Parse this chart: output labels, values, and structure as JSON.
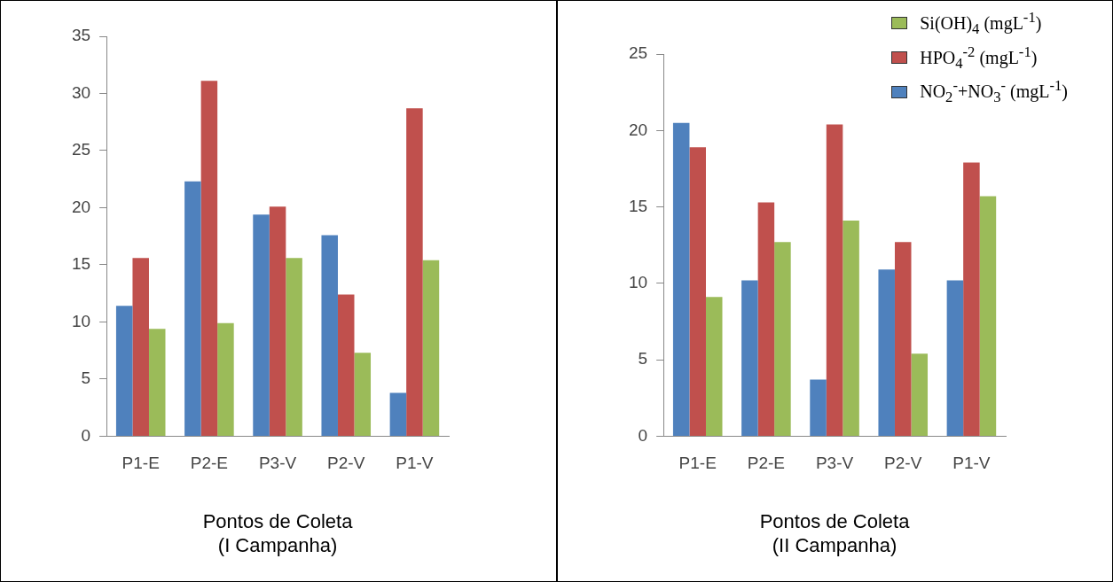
{
  "chart_data": [
    {
      "type": "bar",
      "xlabel": "Pontos de Coleta\n(I Campanha)",
      "categories": [
        "P1-E",
        "P2-E",
        "P3-V",
        "P2-V",
        "P1-V"
      ],
      "series": [
        {
          "color": "#4f81bd",
          "values": [
            11.4,
            22.3,
            19.4,
            17.6,
            3.8
          ]
        },
        {
          "color": "#c0504d",
          "values": [
            15.6,
            31.1,
            20.1,
            12.4,
            28.7
          ]
        },
        {
          "color": "#9bbb59",
          "values": [
            9.4,
            9.9,
            15.6,
            7.3,
            15.4
          ]
        }
      ],
      "ylim": [
        0,
        35
      ],
      "yticks": [
        0,
        5,
        10,
        15,
        20,
        25,
        30,
        35
      ],
      "grid": false,
      "legend": false
    },
    {
      "type": "bar",
      "xlabel": "Pontos de Coleta\n(II Campanha)",
      "categories": [
        "P1-E",
        "P2-E",
        "P3-V",
        "P2-V",
        "P1-V"
      ],
      "series": [
        {
          "name": "NO$_{2}$$^{-}$+NO$_{3}$$^{-}$ (mgL$^{-1}$)",
          "color": "#4f81bd",
          "values": [
            20.5,
            10.2,
            3.7,
            10.9,
            10.2
          ]
        },
        {
          "name": "HPO$_{4}$$^{-2}$ (mgL$^{-1}$)",
          "color": "#c0504d",
          "values": [
            18.9,
            15.3,
            20.4,
            12.7,
            17.9
          ]
        },
        {
          "name": "Si(OH)$_{4}$ (mgL$^{-1}$)",
          "color": "#9bbb59",
          "values": [
            9.1,
            12.7,
            14.1,
            5.4,
            15.7
          ]
        }
      ],
      "ylim": [
        0,
        25
      ],
      "yticks": [
        0,
        5,
        10,
        15,
        20,
        25
      ],
      "grid": false,
      "legend": "top right"
    }
  ]
}
